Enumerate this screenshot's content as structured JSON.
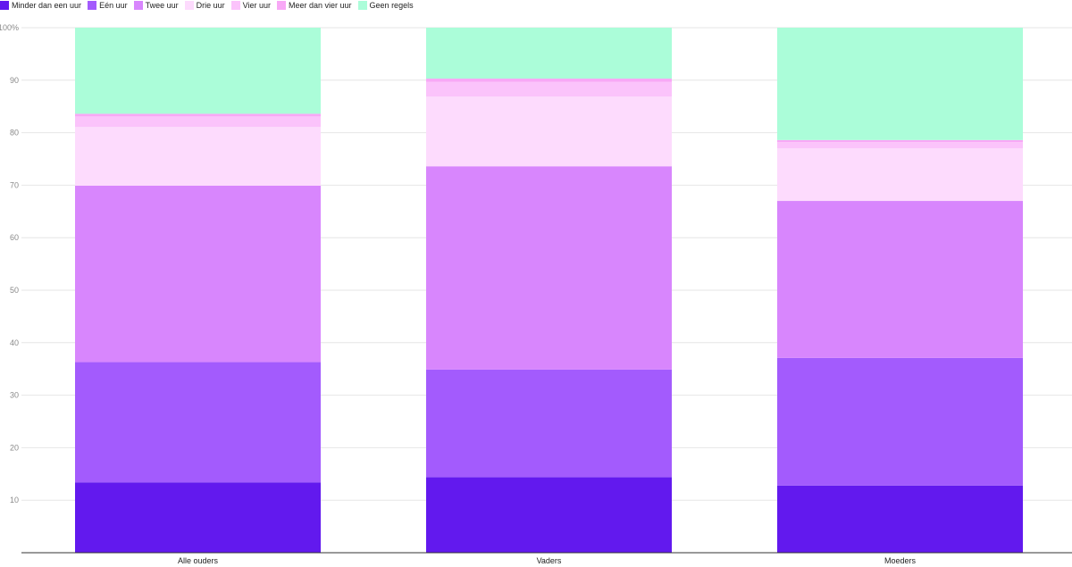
{
  "chart_data": {
    "type": "bar",
    "stacked": true,
    "categories": [
      "Alle ouders",
      "Vaders",
      "Moeders"
    ],
    "ylim": [
      0,
      100
    ],
    "yticks": [
      10,
      20,
      30,
      40,
      50,
      60,
      70,
      80,
      90,
      100
    ],
    "ytick_labels": [
      "10",
      "20",
      "30",
      "40",
      "50",
      "60",
      "70",
      "80",
      "90",
      "100%"
    ],
    "grid": true,
    "legend_position": "top-left",
    "series": [
      {
        "name": "Minder dan een uur",
        "color": "#6219ee",
        "values": [
          13.4,
          14.4,
          12.8
        ]
      },
      {
        "name": "Eén uur",
        "color": "#a35bfd",
        "values": [
          22.9,
          20.5,
          24.3
        ]
      },
      {
        "name": "Twee uur",
        "color": "#d886fd",
        "values": [
          33.6,
          38.7,
          29.9
        ]
      },
      {
        "name": "Drie uur",
        "color": "#fddbfd",
        "values": [
          11.2,
          13.3,
          10.0
        ]
      },
      {
        "name": "Vier uur",
        "color": "#fbc3fb",
        "values": [
          2.0,
          2.8,
          1.2
        ]
      },
      {
        "name": "Meer dan vier uur",
        "color": "#f8a8f6",
        "values": [
          0.5,
          0.6,
          0.4
        ]
      },
      {
        "name": "Geen regels",
        "color": "#abfdd9",
        "values": [
          16.4,
          9.7,
          21.4
        ]
      }
    ]
  }
}
